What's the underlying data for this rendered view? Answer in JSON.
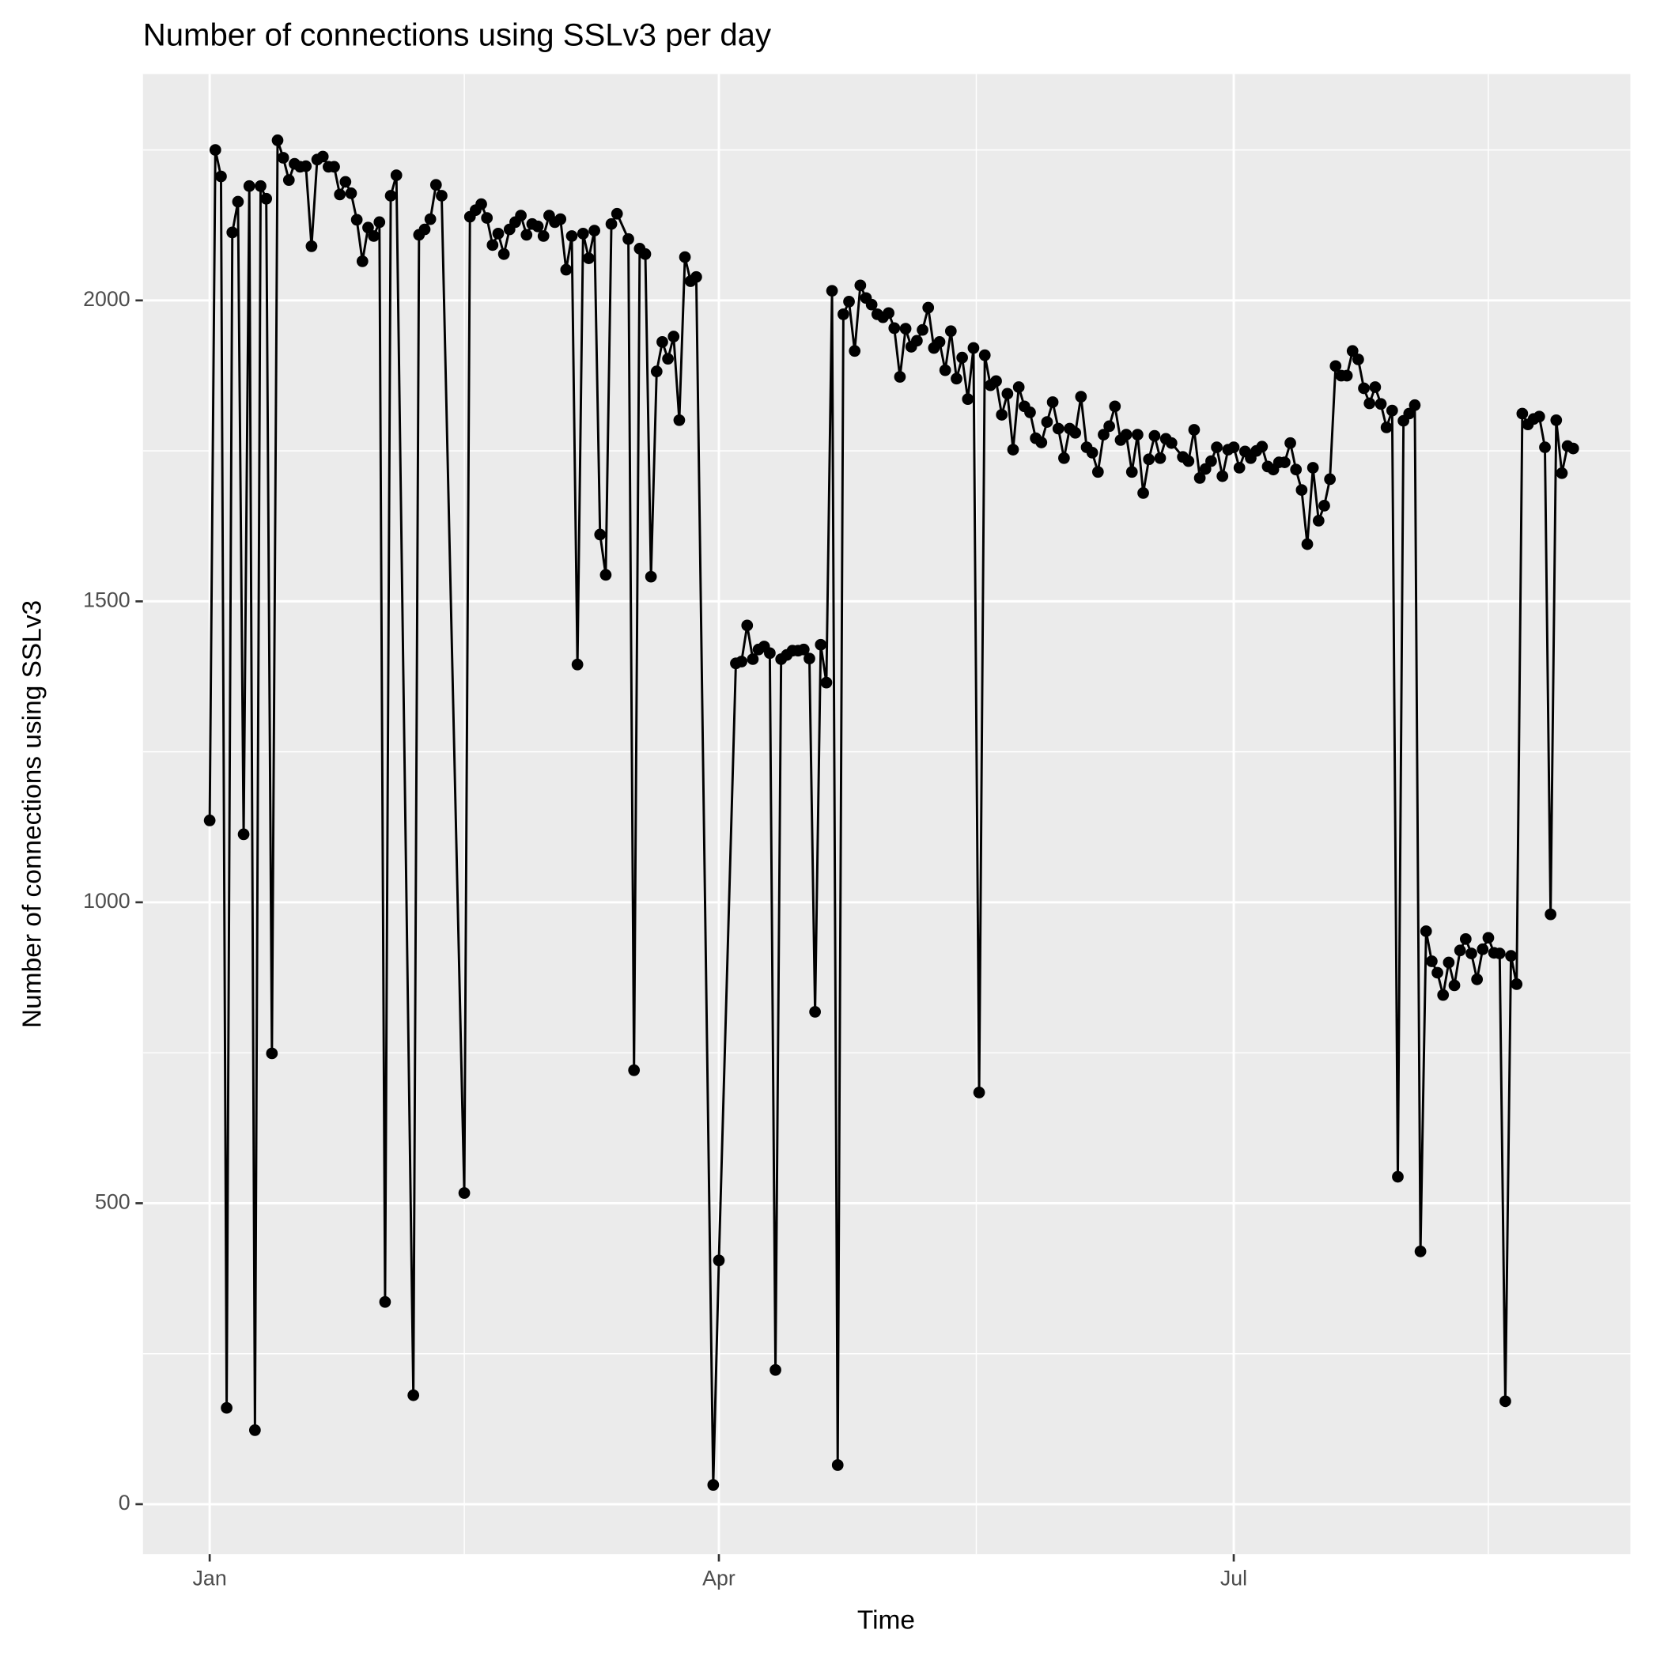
{
  "chart_data": {
    "type": "line",
    "title": "Number of connections using SSLv3 per day",
    "x_label": "Time",
    "y_label": "Number of connections using SSLv3",
    "x": [
      0,
      1,
      2,
      3,
      4,
      5,
      6,
      7,
      8,
      9,
      10,
      11,
      12,
      13,
      14,
      15,
      16,
      17,
      18,
      19,
      20,
      21,
      22,
      23,
      24,
      25,
      26,
      27,
      28,
      29,
      30,
      31,
      32,
      33,
      36,
      37,
      38,
      39,
      40,
      41,
      45,
      46,
      47,
      48,
      49,
      50,
      51,
      52,
      53,
      54,
      55,
      56,
      57,
      58,
      59,
      60,
      61,
      62,
      63,
      64,
      65,
      66,
      67,
      68,
      69,
      70,
      71,
      72,
      74,
      75,
      76,
      77,
      78,
      79,
      80,
      81,
      82,
      83,
      84,
      85,
      86,
      89,
      90,
      93,
      94,
      95,
      96,
      97,
      98,
      99,
      100,
      101,
      102,
      103,
      104,
      105,
      106,
      107,
      108,
      109,
      110,
      111,
      112,
      113,
      114,
      115,
      116,
      117,
      118,
      119,
      120,
      121,
      122,
      123,
      124,
      125,
      126,
      127,
      128,
      129,
      130,
      131,
      132,
      133,
      134,
      135,
      136,
      137,
      138,
      139,
      140,
      141,
      142,
      143,
      144,
      145,
      146,
      147,
      148,
      149,
      150,
      151,
      152,
      153,
      154,
      155,
      156,
      157,
      158,
      159,
      160,
      161,
      162,
      163,
      164,
      165,
      166,
      167,
      168,
      169,
      170,
      172,
      173,
      174,
      175,
      176,
      177,
      178,
      179,
      180,
      181,
      182,
      183,
      184,
      185,
      186,
      187,
      188,
      189,
      190,
      191,
      192,
      193,
      194,
      195,
      196,
      197,
      198,
      199,
      200,
      201,
      202,
      203,
      204,
      205,
      206,
      207,
      208,
      209,
      210,
      211,
      212,
      213,
      214,
      215,
      216,
      217,
      218,
      219,
      220,
      221,
      222,
      223,
      224,
      225,
      226,
      227,
      228,
      229,
      230,
      231,
      232,
      233,
      234,
      235,
      236,
      237,
      238,
      239,
      240,
      241
    ],
    "values": [
      1136,
      2250,
      2206,
      160,
      2113,
      2164,
      1113,
      2190,
      123,
      2190,
      2169,
      749,
      2266,
      2237,
      2200,
      2227,
      2222,
      2223,
      2090,
      2234,
      2239,
      2222,
      2222,
      2176,
      2197,
      2178,
      2134,
      2065,
      2121,
      2107,
      2130,
      336,
      2174,
      2208,
      181,
      2109,
      2118,
      2135,
      2192,
      2174,
      517,
      2139,
      2150,
      2160,
      2137,
      2092,
      2111,
      2077,
      2118,
      2130,
      2141,
      2109,
      2127,
      2123,
      2107,
      2141,
      2130,
      2135,
      2051,
      2107,
      1395,
      2111,
      2070,
      2116,
      1611,
      1544,
      2127,
      2144,
      2102,
      721,
      2086,
      2077,
      1541,
      1882,
      1931,
      1903,
      1940,
      1801,
      2072,
      2032,
      2039,
      32,
      405,
      1397,
      1400,
      1460,
      1404,
      1420,
      1425,
      1414,
      223,
      1404,
      1411,
      1418,
      1418,
      1420,
      1405,
      818,
      1428,
      1365,
      2016,
      65,
      1977,
      1998,
      1916,
      2025,
      2004,
      1993,
      1977,
      1972,
      1979,
      1954,
      1873,
      1953,
      1923,
      1933,
      1951,
      1988,
      1921,
      1931,
      1884,
      1949,
      1870,
      1905,
      1836,
      1921,
      684,
      1909,
      1859,
      1866,
      1810,
      1845,
      1752,
      1856,
      1824,
      1814,
      1771,
      1764,
      1798,
      1831,
      1787,
      1738,
      1787,
      1780,
      1840,
      1756,
      1747,
      1715,
      1777,
      1791,
      1824,
      1768,
      1777,
      1715,
      1777,
      1680,
      1736,
      1775,
      1738,
      1770,
      1763,
      1740,
      1733,
      1785,
      1705,
      1720,
      1733,
      1756,
      1708,
      1752,
      1756,
      1722,
      1749,
      1738,
      1750,
      1757,
      1724,
      1719,
      1731,
      1731,
      1763,
      1719,
      1685,
      1595,
      1722,
      1634,
      1659,
      1703,
      1891,
      1875,
      1875,
      1916,
      1902,
      1854,
      1829,
      1856,
      1828,
      1789,
      1817,
      544,
      1800,
      1812,
      1826,
      420,
      952,
      902,
      883,
      846,
      900,
      862,
      920,
      939,
      915,
      872,
      922,
      941,
      916,
      915,
      171,
      911,
      864,
      1812,
      1794,
      1803,
      1807,
      1756,
      980,
      1801,
      1713,
      1758,
      1754
    ],
    "color": "#000000",
    "xlim": [
      -11.8,
      251.1
    ],
    "ylim": [
      -83,
      2376
    ],
    "xticks": [
      {
        "value": 0,
        "label": "Jan"
      },
      {
        "value": 90,
        "label": "Apr"
      },
      {
        "value": 181,
        "label": "Jul"
      }
    ],
    "xminor_ticks": [
      45,
      135.5,
      226
    ],
    "yticks": [
      0,
      500,
      1000,
      1500,
      2000
    ],
    "yminor_ticks": [
      250,
      750,
      1250,
      1750,
      2250
    ],
    "grid": true
  }
}
